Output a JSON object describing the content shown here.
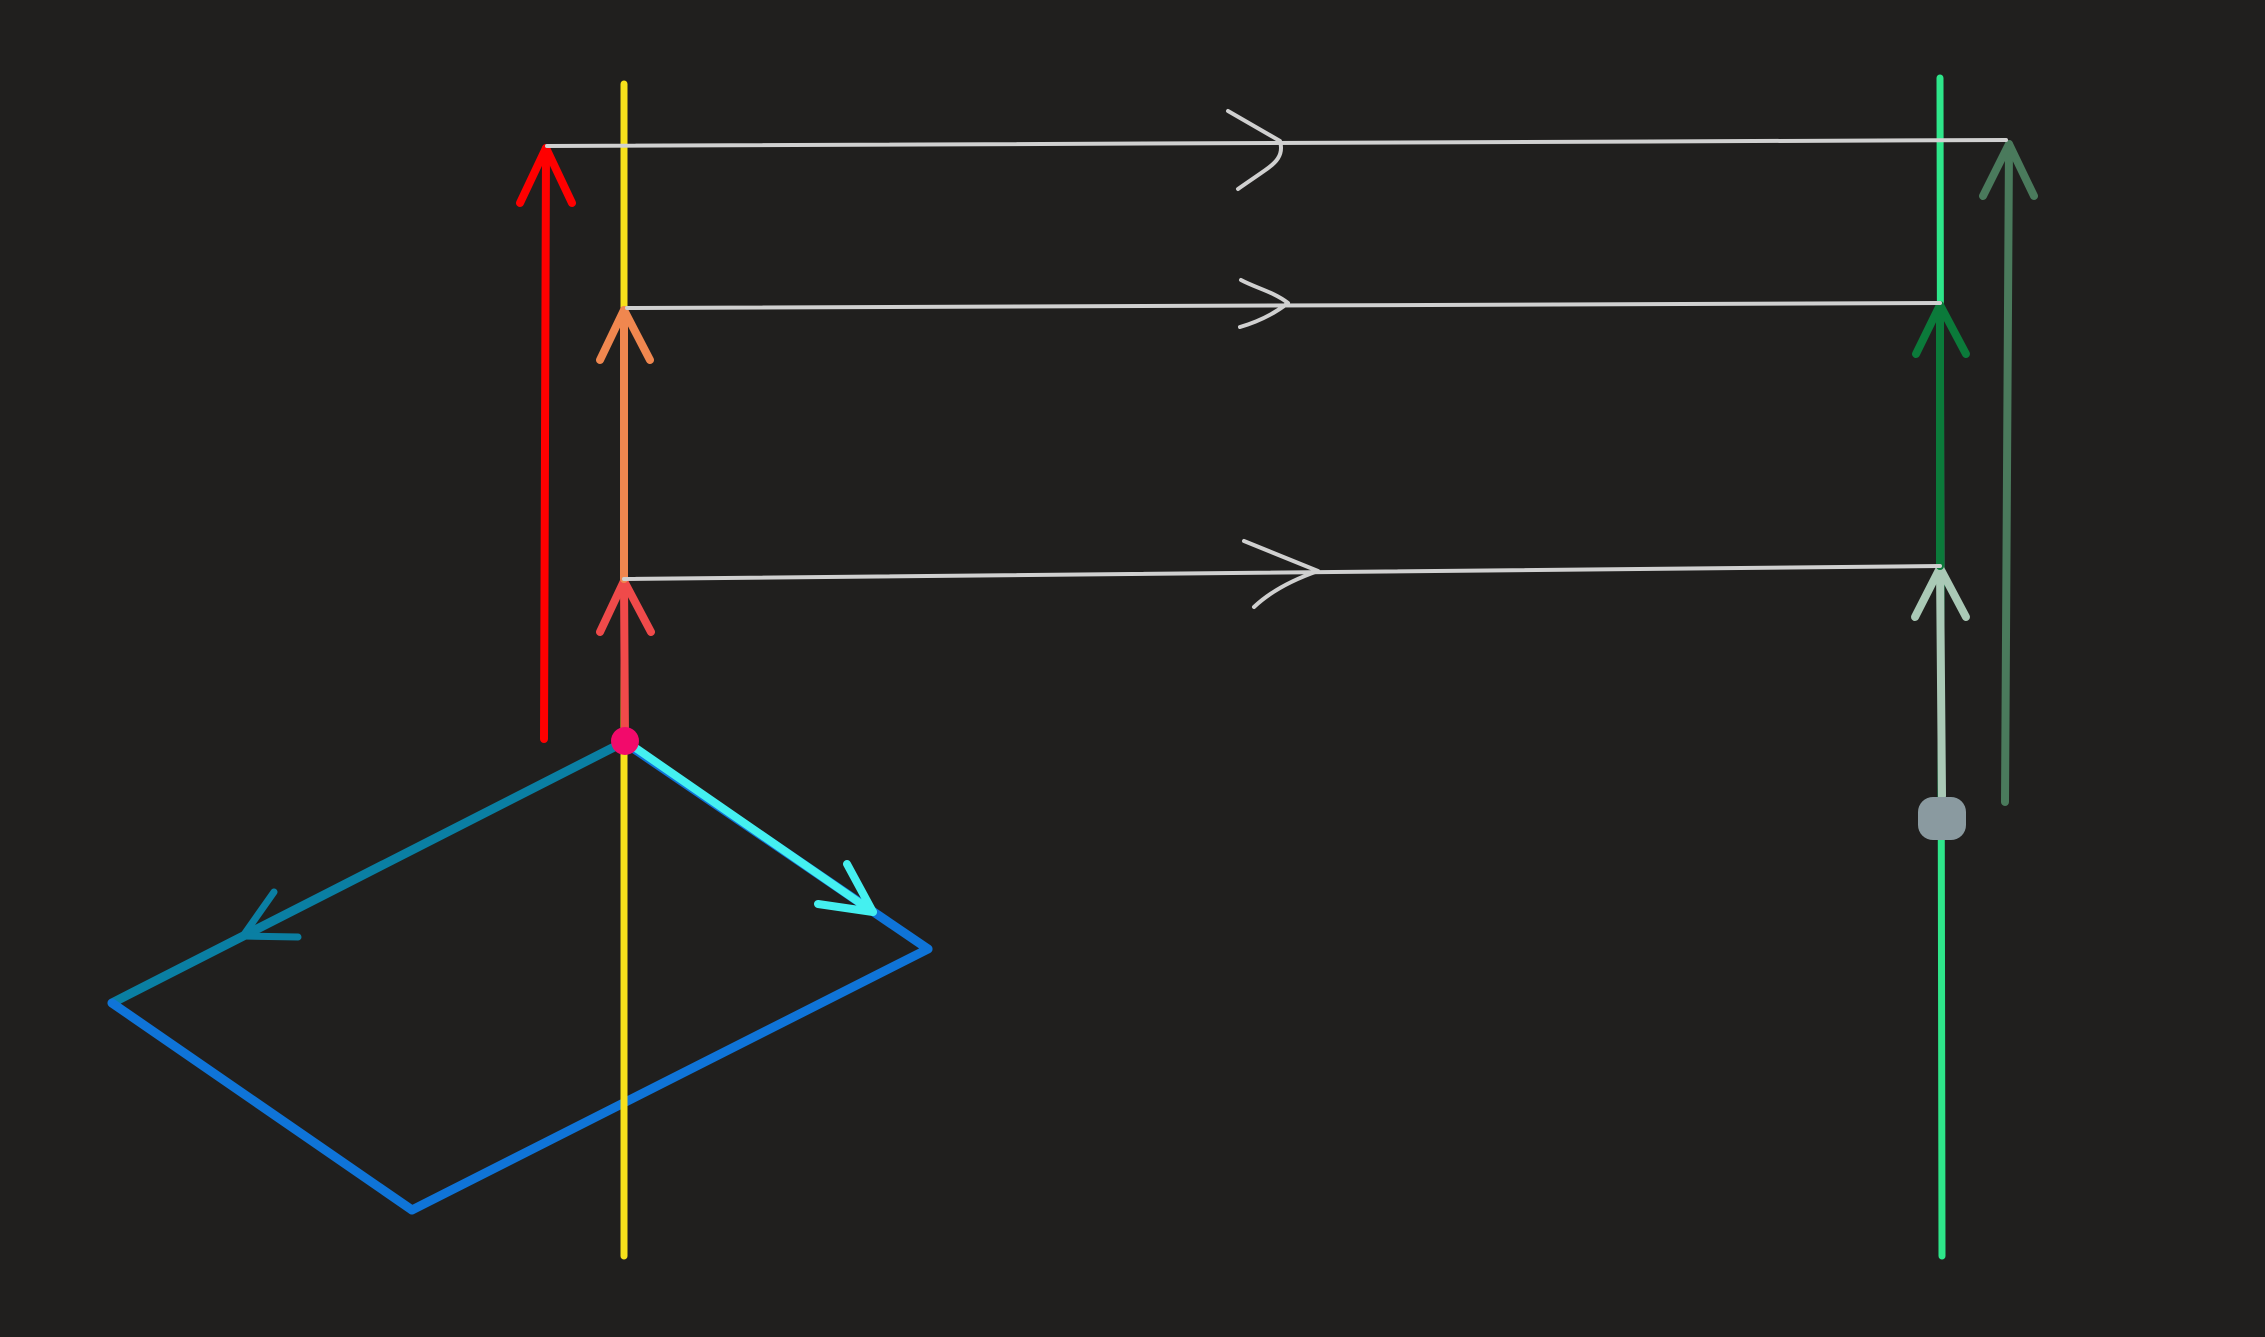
{
  "background": "#201f1e",
  "colors": {
    "yellow_axis": "#f7e11b",
    "green_axis": "#2ee68a",
    "red_vector": "#ff0000",
    "orange_vector": "#f0874f",
    "coral_vector": "#f04a4a",
    "dark_green_vector": "#0b7a3a",
    "sage_vector": "#aac9b6",
    "muted_green_vector": "#4a7a5c",
    "connector": "#d0d0d0",
    "plane": "#0f74d8",
    "plane_teal": "#0a7fa3",
    "cyan_vector": "#44f0f0",
    "pink_point": "#f20a6b",
    "gray_point": "#8a9aa0"
  },
  "icons": [
    "arrowhead-icon",
    "open-arrow-icon",
    "point-marker-icon"
  ]
}
